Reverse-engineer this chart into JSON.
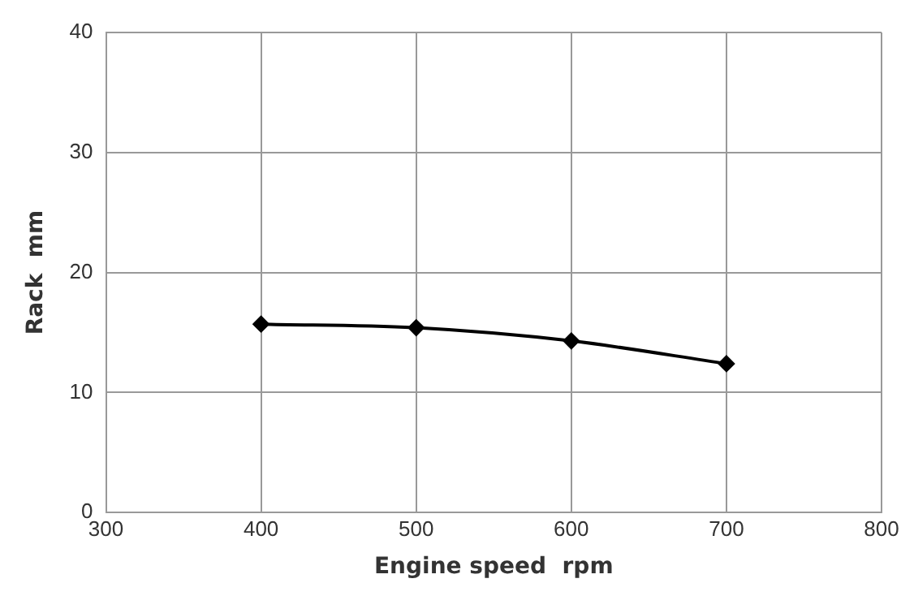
{
  "chart_data": {
    "type": "line",
    "xlabel": "Engine speed  rpm",
    "ylabel": "Rack  mm",
    "series": [
      {
        "x": [
          400,
          500,
          600,
          700
        ],
        "values": [
          15.7,
          15.4,
          14.3,
          12.4
        ],
        "color": "#000000"
      }
    ],
    "xlim": [
      300,
      800
    ],
    "xticks": [
      300,
      400,
      500,
      600,
      700,
      800
    ],
    "ylim": [
      0,
      40
    ],
    "yticks": [
      0,
      10,
      20,
      30,
      40
    ],
    "grid": true,
    "legend": false,
    "marker": "diamond",
    "line_style": "solid"
  }
}
